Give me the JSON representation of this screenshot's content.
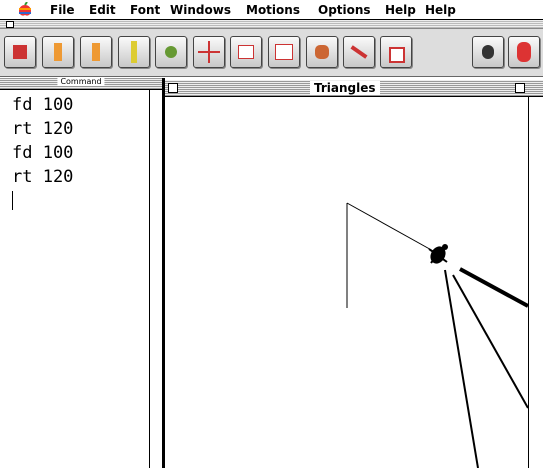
{
  "menu": {
    "items": [
      "File",
      "Edit",
      "Font",
      "Windows",
      "Motions",
      "Options",
      "Help",
      "Help"
    ]
  },
  "command_window": {
    "title": "Command",
    "lines": [
      "fd 100",
      "rt 120",
      "fd 100",
      "rt 120"
    ]
  },
  "graphics_window": {
    "title": "Triangles"
  }
}
